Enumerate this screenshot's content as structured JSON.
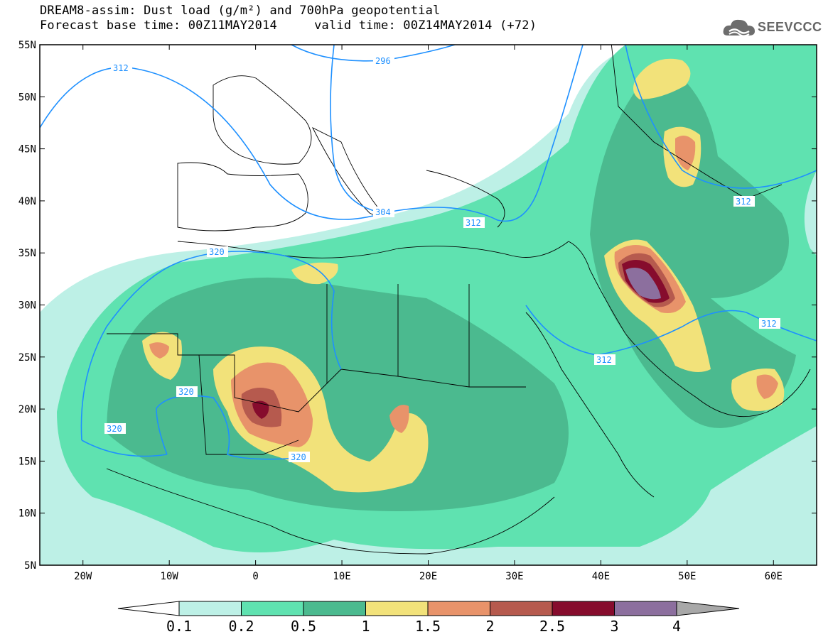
{
  "header": {
    "title_line1": "DREAM8-assim: Dust load (g/m²) and 700hPa geopotential",
    "title_line2": "Forecast base time: 00Z11MAY2014     valid time: 00Z14MAY2014 (+72)"
  },
  "logo": {
    "text": "SEEVCCC",
    "icon": "cloud-logo-icon"
  },
  "map": {
    "lon_range": [
      -25,
      65
    ],
    "lat_range": [
      5,
      55
    ],
    "y_ticks": [
      "55N",
      "50N",
      "45N",
      "40N",
      "35N",
      "30N",
      "25N",
      "20N",
      "15N",
      "10N",
      "5N"
    ],
    "x_ticks": [
      "20W",
      "10W",
      "0",
      "10E",
      "20E",
      "30E",
      "40E",
      "50E",
      "60E"
    ],
    "contour_labels": [
      "312",
      "296",
      "304",
      "312",
      "320",
      "320",
      "320",
      "320",
      "312",
      "312",
      "312"
    ]
  },
  "colorbar": {
    "levels": [
      "0.1",
      "0.2",
      "0.5",
      "1",
      "1.5",
      "2",
      "2.5",
      "3",
      "4"
    ],
    "colors": [
      "#ffffff",
      "#bdf0e6",
      "#5fe2b0",
      "#4bba8f",
      "#f2e27a",
      "#e8936a",
      "#b65a4e",
      "#860c2d",
      "#8c6f9e",
      "#a8a8a8"
    ]
  },
  "colors": {
    "contour": "#1e90ff",
    "border": "#000000"
  }
}
